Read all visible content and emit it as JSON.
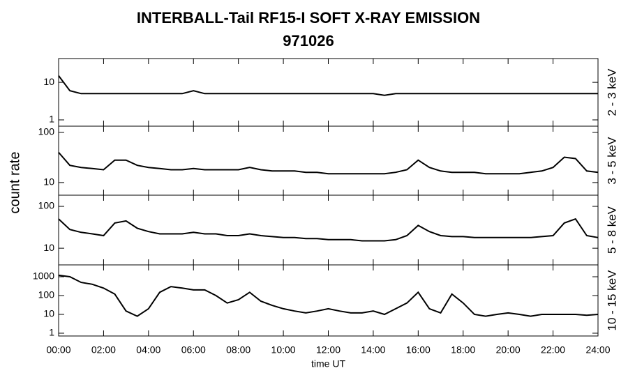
{
  "title": "INTERBALL-Tail RF15-I SOFT X-RAY EMISSION",
  "subtitle": "971026",
  "ylabel": "count rate",
  "chart_data": [
    {
      "type": "line",
      "label": "2 - 3 keV",
      "color": "#000000",
      "log_y": true,
      "x": [
        0,
        0.5,
        1,
        1.5,
        2,
        2.5,
        3,
        3.5,
        4,
        4.5,
        5,
        5.5,
        6,
        6.5,
        7,
        7.5,
        8,
        8.5,
        9,
        9.5,
        10,
        10.5,
        11,
        11.5,
        12,
        12.5,
        13,
        13.5,
        14,
        14.5,
        15,
        15.5,
        16,
        16.5,
        17,
        17.5,
        18,
        18.5,
        19,
        19.5,
        20,
        20.5,
        21,
        21.5,
        22,
        22.5,
        23,
        23.5,
        24
      ],
      "values": [
        15,
        6,
        5,
        5,
        5,
        5,
        5,
        5,
        5,
        5,
        5,
        5,
        6,
        5,
        5,
        5,
        5,
        5,
        5,
        5,
        5,
        5,
        5,
        5,
        5,
        5,
        5,
        5,
        5,
        4.5,
        5,
        5,
        5,
        5,
        5,
        5,
        5,
        5,
        5,
        5,
        5,
        5,
        5,
        5,
        5,
        5,
        5,
        5,
        5
      ],
      "xlim": [
        0,
        24
      ],
      "ylim": [
        0.68,
        43
      ],
      "yticks": [
        1,
        10
      ]
    },
    {
      "type": "line",
      "label": "3 - 5 keV",
      "color": "#000000",
      "log_y": true,
      "x": [
        0,
        0.5,
        1,
        1.5,
        2,
        2.5,
        3,
        3.5,
        4,
        4.5,
        5,
        5.5,
        6,
        6.5,
        7,
        7.5,
        8,
        8.5,
        9,
        9.5,
        10,
        10.5,
        11,
        11.5,
        12,
        12.5,
        13,
        13.5,
        14,
        14.5,
        15,
        15.5,
        16,
        16.5,
        17,
        17.5,
        18,
        18.5,
        19,
        19.5,
        20,
        20.5,
        21,
        21.5,
        22,
        22.5,
        23,
        23.5,
        24
      ],
      "values": [
        40,
        22,
        20,
        19,
        18,
        28,
        28,
        22,
        20,
        19,
        18,
        18,
        19,
        18,
        18,
        18,
        18,
        20,
        18,
        17,
        17,
        17,
        16,
        16,
        15,
        15,
        15,
        15,
        15,
        15,
        16,
        18,
        28,
        20,
        17,
        16,
        16,
        16,
        15,
        15,
        15,
        15,
        16,
        17,
        20,
        32,
        30,
        17,
        16
      ],
      "xlim": [
        0,
        24
      ],
      "ylim": [
        5.6,
        133
      ],
      "yticks": [
        10,
        100
      ]
    },
    {
      "type": "line",
      "label": "5 - 8 keV",
      "color": "#000000",
      "log_y": true,
      "x": [
        0,
        0.5,
        1,
        1.5,
        2,
        2.5,
        3,
        3.5,
        4,
        4.5,
        5,
        5.5,
        6,
        6.5,
        7,
        7.5,
        8,
        8.5,
        9,
        9.5,
        10,
        10.5,
        11,
        11.5,
        12,
        12.5,
        13,
        13.5,
        14,
        14.5,
        15,
        15.5,
        16,
        16.5,
        17,
        17.5,
        18,
        18.5,
        19,
        19.5,
        20,
        20.5,
        21,
        21.5,
        22,
        22.5,
        23,
        23.5,
        24
      ],
      "values": [
        50,
        28,
        24,
        22,
        20,
        40,
        45,
        30,
        25,
        22,
        22,
        22,
        24,
        22,
        22,
        20,
        20,
        22,
        20,
        19,
        18,
        18,
        17,
        17,
        16,
        16,
        16,
        15,
        15,
        15,
        16,
        20,
        35,
        25,
        20,
        19,
        19,
        18,
        18,
        18,
        18,
        18,
        18,
        19,
        20,
        40,
        50,
        20,
        18
      ],
      "xlim": [
        0,
        24
      ],
      "ylim": [
        4,
        185
      ],
      "yticks": [
        10,
        100
      ]
    },
    {
      "type": "line",
      "label": "10 - 15 keV",
      "color": "#000000",
      "log_y": true,
      "x": [
        0,
        0.5,
        1,
        1.5,
        2,
        2.5,
        3,
        3.5,
        4,
        4.5,
        5,
        5.5,
        6,
        6.5,
        7,
        7.5,
        8,
        8.5,
        9,
        9.5,
        10,
        10.5,
        11,
        11.5,
        12,
        12.5,
        13,
        13.5,
        14,
        14.5,
        15,
        15.5,
        16,
        16.5,
        17,
        17.5,
        18,
        18.5,
        19,
        19.5,
        20,
        20.5,
        21,
        21.5,
        22,
        22.5,
        23,
        23.5,
        24
      ],
      "values": [
        1200,
        1000,
        500,
        400,
        250,
        120,
        15,
        8,
        20,
        150,
        300,
        250,
        200,
        200,
        100,
        40,
        60,
        150,
        50,
        30,
        20,
        15,
        12,
        15,
        20,
        15,
        12,
        12,
        15,
        10,
        20,
        40,
        150,
        20,
        12,
        120,
        40,
        10,
        8,
        10,
        12,
        10,
        8,
        10,
        10,
        10,
        10,
        9,
        10
      ],
      "xlim": [
        0,
        24
      ],
      "ylim": [
        0.71,
        4270
      ],
      "yticks": [
        1,
        10,
        100,
        1000
      ],
      "xlabel": "time UT",
      "xticks": [
        {
          "value": 0,
          "label": "00:00"
        },
        {
          "value": 2,
          "label": "02:00"
        },
        {
          "value": 4,
          "label": "04:00"
        },
        {
          "value": 6,
          "label": "06:00"
        },
        {
          "value": 8,
          "label": "08:00"
        },
        {
          "value": 10,
          "label": "10:00"
        },
        {
          "value": 12,
          "label": "12:00"
        },
        {
          "value": 14,
          "label": "14:00"
        },
        {
          "value": 16,
          "label": "16:00"
        },
        {
          "value": 18,
          "label": "18:00"
        },
        {
          "value": 20,
          "label": "20:00"
        },
        {
          "value": 22,
          "label": "22:00"
        },
        {
          "value": 24,
          "label": "24:00"
        }
      ]
    }
  ]
}
